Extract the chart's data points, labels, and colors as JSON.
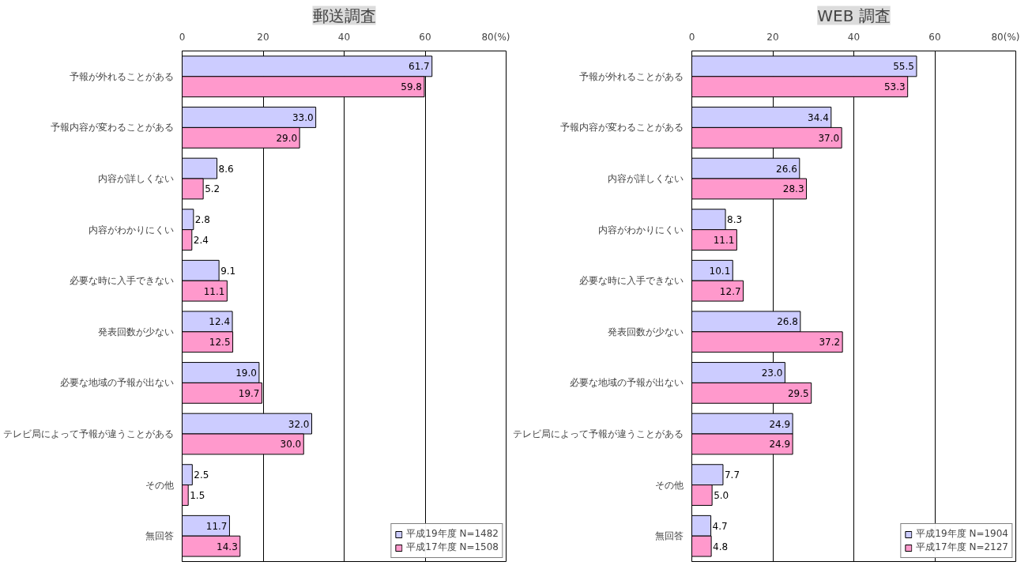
{
  "chart_data": [
    {
      "type": "bar",
      "orientation": "horizontal",
      "title": "郵送調査",
      "categories": [
        "予報が外れることがある",
        "予報内容が変わることがある",
        "内容が詳しくない",
        "内容がわかりにくい",
        "必要な時に入手できない",
        "発表回数が少ない",
        "必要な地域の予報が出ない",
        "テレビ局によって予報が違うことがある",
        "その他",
        "無回答"
      ],
      "series": [
        {
          "name": "平成19年度 N=1482",
          "color": "#ccccff",
          "values": [
            61.7,
            33.0,
            8.6,
            2.8,
            9.1,
            12.4,
            19.0,
            32.0,
            2.5,
            11.7
          ],
          "value_labels": [
            "61.7",
            "33.0",
            "8.6",
            "2.8",
            "9.1",
            "12.4",
            "19.0",
            "32.0",
            "2.5",
            "11.7"
          ]
        },
        {
          "name": "平成17年度 N=1508",
          "color": "#ff99cc",
          "values": [
            59.8,
            29.0,
            5.2,
            2.4,
            11.1,
            12.5,
            19.7,
            30.0,
            1.5,
            14.3
          ],
          "value_labels": [
            "59.8",
            "29.0",
            "5.2",
            "2.4",
            "11.1",
            "12.5",
            "19.7",
            "30.0",
            "1.5",
            "14.3"
          ]
        }
      ],
      "xlim": [
        0,
        80
      ],
      "xticks": [
        0,
        20,
        40,
        60,
        {
          "value": 80,
          "label": "80(%)"
        }
      ],
      "grid": "x",
      "legend": "bottom right"
    },
    {
      "type": "bar",
      "orientation": "horizontal",
      "title": "WEB 調査",
      "categories": [
        "予報が外れることがある",
        "予報内容が変わることがある",
        "内容が詳しくない",
        "内容がわかりにくい",
        "必要な時に入手できない",
        "発表回数が少ない",
        "必要な地域の予報が出ない",
        "テレビ局によって予報が違うことがある",
        "その他",
        "無回答"
      ],
      "series": [
        {
          "name": "平成19年度 N=1904",
          "color": "#ccccff",
          "values": [
            55.5,
            34.4,
            26.6,
            8.3,
            10.1,
            26.8,
            23.0,
            24.9,
            7.7,
            4.7
          ],
          "value_labels": [
            "55.5",
            "34.4",
            "26.6",
            "8.3",
            "10.1",
            "26.8",
            "23.0",
            "24.9",
            "7.7",
            "4.7"
          ]
        },
        {
          "name": "平成17年度 N=2127",
          "color": "#ff99cc",
          "values": [
            53.3,
            37.0,
            28.3,
            11.1,
            12.7,
            37.2,
            29.5,
            24.9,
            5.0,
            4.8
          ],
          "value_labels": [
            "53.3",
            "37.0",
            "28.3",
            "11.1",
            "12.7",
            "37.2",
            "29.5",
            "24.9",
            "5.0",
            "4.8"
          ]
        }
      ],
      "xlim": [
        0,
        80
      ],
      "xticks": [
        0,
        20,
        40,
        60,
        {
          "value": 80,
          "label": "80(%)"
        }
      ],
      "grid": "x",
      "legend": "bottom right"
    }
  ]
}
